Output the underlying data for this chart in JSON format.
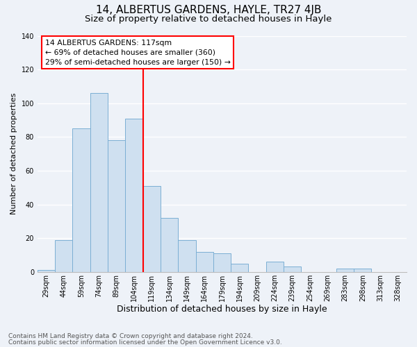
{
  "title": "14, ALBERTUS GARDENS, HAYLE, TR27 4JB",
  "subtitle": "Size of property relative to detached houses in Hayle",
  "xlabel": "Distribution of detached houses by size in Hayle",
  "ylabel": "Number of detached properties",
  "footnote1": "Contains HM Land Registry data © Crown copyright and database right 2024.",
  "footnote2": "Contains public sector information licensed under the Open Government Licence v3.0.",
  "categories": [
    "29sqm",
    "44sqm",
    "59sqm",
    "74sqm",
    "89sqm",
    "104sqm",
    "119sqm",
    "134sqm",
    "149sqm",
    "164sqm",
    "179sqm",
    "194sqm",
    "209sqm",
    "224sqm",
    "239sqm",
    "254sqm",
    "269sqm",
    "283sqm",
    "298sqm",
    "313sqm",
    "328sqm"
  ],
  "values": [
    1,
    19,
    85,
    106,
    78,
    91,
    51,
    32,
    19,
    12,
    11,
    5,
    0,
    6,
    3,
    0,
    0,
    2,
    2,
    0,
    0
  ],
  "bar_color": "#cfe0f0",
  "bar_edge_color": "#7bafd4",
  "highlight_line_index": 6,
  "highlight_line_color": "red",
  "annotation_title": "14 ALBERTUS GARDENS: 117sqm",
  "annotation_line1": "← 69% of detached houses are smaller (360)",
  "annotation_line2": "29% of semi-detached houses are larger (150) →",
  "annotation_box_color": "white",
  "annotation_box_edge_color": "red",
  "ylim": [
    0,
    140
  ],
  "yticks": [
    0,
    20,
    40,
    60,
    80,
    100,
    120,
    140
  ],
  "background_color": "#eef2f8",
  "grid_color": "white",
  "title_fontsize": 11,
  "subtitle_fontsize": 9.5,
  "xlabel_fontsize": 9,
  "ylabel_fontsize": 8,
  "tick_fontsize": 7,
  "footnote_fontsize": 6.5
}
